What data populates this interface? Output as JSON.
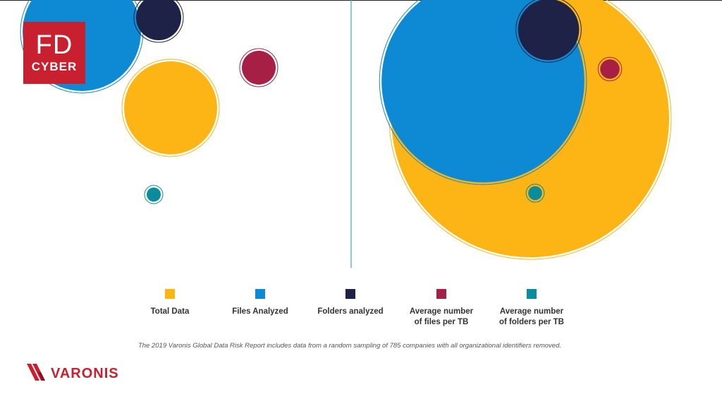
{
  "logo": {
    "line1": "FD",
    "line2": "CYBER"
  },
  "brand": {
    "name": "VARONIS",
    "color": "#c8202f"
  },
  "footnote": "The 2019 Varonis Global Data Risk Report includes data from a random sampling of 785 companies with all organizational identifiers removed.",
  "chart_data": {
    "type": "bubble",
    "title": "",
    "panels": [
      {
        "name": "",
        "bubbles": [
          {
            "series": "Total Data",
            "relative_size": 0.33
          },
          {
            "series": "Files Analyzed",
            "relative_size": 0.42
          },
          {
            "series": "Folders analyzed",
            "relative_size": 0.16
          },
          {
            "series": "Average number of files per TB",
            "relative_size": 0.12
          },
          {
            "series": "Average number of folders per TB",
            "relative_size": 0.05
          }
        ]
      },
      {
        "name": "",
        "bubbles": [
          {
            "series": "Total Data",
            "relative_size": 1.0
          },
          {
            "series": "Files Analyzed",
            "relative_size": 0.73
          },
          {
            "series": "Folders analyzed",
            "relative_size": 0.22
          },
          {
            "series": "Average number of files per TB",
            "relative_size": 0.07
          },
          {
            "series": "Average number of folders per TB",
            "relative_size": 0.05
          }
        ]
      }
    ]
  },
  "legend": [
    {
      "label": "Total Data",
      "color": "#fdb515"
    },
    {
      "label": "Files Analyzed",
      "color": "#0e8ad4"
    },
    {
      "label": "Folders analyzed",
      "color": "#1d2246"
    },
    {
      "label": "Average number\nof files per TB",
      "color": "#a81f45"
    },
    {
      "label": "Average number\nof folders per TB",
      "color": "#0b8c9c"
    }
  ]
}
